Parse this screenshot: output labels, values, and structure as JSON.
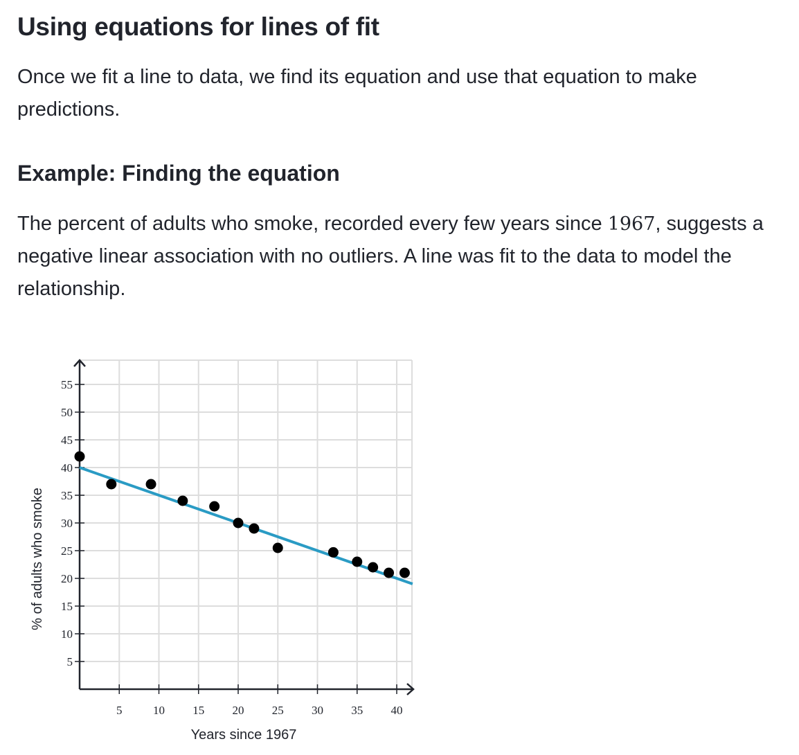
{
  "heading": "Using equations for lines of fit",
  "intro": "Once we fit a line to data, we find its equation and use that equation to make predictions.",
  "example_heading": "Example: Finding the equation",
  "example_text": {
    "before": "The percent of adults who smoke, recorded every few years since ",
    "year": "1967",
    "after": ", suggests a negative linear association with no outliers. A line was fit to the data to model the relationship."
  },
  "colors": {
    "text": "#21242c",
    "fit_line": "#2a9bc4",
    "points": "#000000",
    "grid": "#dddddd"
  },
  "chart_data": {
    "type": "scatter",
    "xlabel": "Years since 1967",
    "ylabel": "% of adults who smoke",
    "xlim": [
      0,
      42
    ],
    "ylim": [
      0,
      59
    ],
    "x_ticks": [
      5,
      10,
      15,
      20,
      25,
      30,
      35,
      40
    ],
    "y_ticks": [
      5,
      10,
      15,
      20,
      25,
      30,
      35,
      40,
      45,
      50,
      55
    ],
    "grid": true,
    "points": [
      {
        "x": 0,
        "y": 42
      },
      {
        "x": 4,
        "y": 37
      },
      {
        "x": 9,
        "y": 37
      },
      {
        "x": 13,
        "y": 34
      },
      {
        "x": 17,
        "y": 33
      },
      {
        "x": 20,
        "y": 30
      },
      {
        "x": 22,
        "y": 29
      },
      {
        "x": 25,
        "y": 25.5
      },
      {
        "x": 32,
        "y": 24.7
      },
      {
        "x": 35,
        "y": 23
      },
      {
        "x": 37,
        "y": 22
      },
      {
        "x": 39,
        "y": 21
      },
      {
        "x": 41,
        "y": 21
      }
    ],
    "fit_line": {
      "x1": 0,
      "y1": 40,
      "x2": 42,
      "y2": 19
    }
  }
}
